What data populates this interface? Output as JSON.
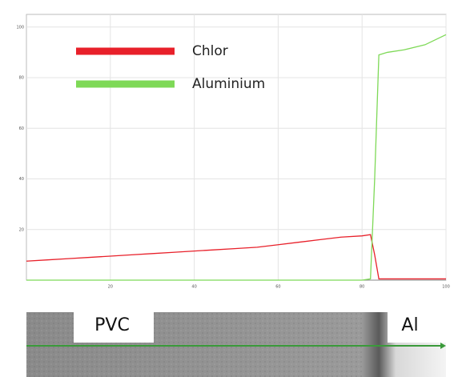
{
  "chart_data": {
    "type": "line",
    "x": [
      0,
      5,
      10,
      15,
      20,
      25,
      30,
      35,
      40,
      45,
      50,
      55,
      60,
      65,
      70,
      75,
      80,
      82,
      83,
      84,
      86,
      90,
      95,
      100
    ],
    "series": [
      {
        "name": "Chlor",
        "color": "#e8202a",
        "values": [
          7.5,
          8,
          8.5,
          9,
          9.5,
          10,
          10.5,
          11,
          11.5,
          12,
          12.5,
          13,
          14,
          15,
          16,
          17,
          17.5,
          18,
          10,
          0.5,
          0.5,
          0.5,
          0.5,
          0.5
        ]
      },
      {
        "name": "Aluminium",
        "color": "#7ed957",
        "values": [
          0,
          0,
          0,
          0,
          0,
          0,
          0,
          0,
          0,
          0,
          0,
          0,
          0,
          0,
          0,
          0,
          0,
          0.5,
          40,
          89,
          90,
          91,
          93,
          97
        ]
      }
    ],
    "xlim": [
      0,
      100
    ],
    "xticks": [
      20,
      40,
      60,
      80,
      100
    ],
    "ylim": [
      0,
      105
    ],
    "yticks": [
      20,
      40,
      60,
      80,
      100
    ],
    "grid": true
  },
  "image_labels": {
    "left": "PVC",
    "right": "Al"
  }
}
